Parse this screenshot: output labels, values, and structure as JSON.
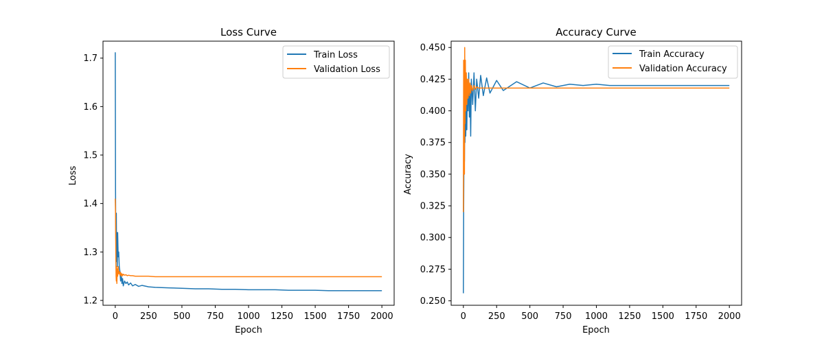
{
  "chart_data": [
    {
      "type": "line",
      "title": "Loss Curve",
      "xlabel": "Epoch",
      "ylabel": "Loss",
      "xlim": [
        -92,
        2092
      ],
      "ylim": [
        1.19,
        1.735
      ],
      "xticks": [
        0,
        250,
        500,
        750,
        1000,
        1250,
        1500,
        1750,
        2000
      ],
      "xtick_labels": [
        "0",
        "250",
        "500",
        "750",
        "1000",
        "1250",
        "1500",
        "1750",
        "2000"
      ],
      "yticks": [
        1.2,
        1.3,
        1.4,
        1.5,
        1.6,
        1.7
      ],
      "ytick_labels": [
        "1.2",
        "1.3",
        "1.4",
        "1.5",
        "1.6",
        "1.7"
      ],
      "grid": false,
      "legend": "top-right",
      "series": [
        {
          "name": "Train Loss",
          "color": "#1f77b4",
          "x": [
            0,
            2,
            4,
            6,
            8,
            10,
            12,
            15,
            18,
            22,
            26,
            30,
            35,
            40,
            45,
            50,
            55,
            60,
            70,
            80,
            90,
            100,
            115,
            130,
            150,
            175,
            200,
            250,
            300,
            400,
            500,
            600,
            700,
            800,
            900,
            1000,
            1100,
            1200,
            1300,
            1400,
            1500,
            1600,
            1700,
            1800,
            1900,
            2000
          ],
          "y": [
            1.712,
            1.43,
            1.33,
            1.3,
            1.38,
            1.28,
            1.34,
            1.27,
            1.34,
            1.29,
            1.3,
            1.27,
            1.26,
            1.24,
            1.255,
            1.235,
            1.245,
            1.23,
            1.24,
            1.235,
            1.238,
            1.232,
            1.236,
            1.23,
            1.233,
            1.229,
            1.231,
            1.228,
            1.227,
            1.226,
            1.225,
            1.224,
            1.224,
            1.223,
            1.223,
            1.222,
            1.222,
            1.222,
            1.221,
            1.221,
            1.221,
            1.22,
            1.22,
            1.22,
            1.22,
            1.22
          ]
        },
        {
          "name": "Validation Loss",
          "color": "#ff7f0e",
          "x": [
            0,
            2,
            4,
            6,
            8,
            10,
            12,
            15,
            18,
            22,
            26,
            30,
            35,
            40,
            45,
            50,
            55,
            60,
            70,
            80,
            90,
            100,
            115,
            130,
            150,
            175,
            200,
            250,
            300,
            400,
            500,
            600,
            700,
            800,
            900,
            1000,
            1100,
            1200,
            1300,
            1400,
            1500,
            1600,
            1700,
            1800,
            1900,
            2000
          ],
          "y": [
            1.41,
            1.38,
            1.3,
            1.25,
            1.24,
            1.27,
            1.235,
            1.265,
            1.25,
            1.27,
            1.255,
            1.26,
            1.252,
            1.258,
            1.25,
            1.255,
            1.251,
            1.254,
            1.252,
            1.253,
            1.251,
            1.252,
            1.251,
            1.251,
            1.25,
            1.25,
            1.25,
            1.25,
            1.249,
            1.249,
            1.249,
            1.249,
            1.249,
            1.249,
            1.249,
            1.249,
            1.249,
            1.249,
            1.249,
            1.249,
            1.249,
            1.249,
            1.249,
            1.249,
            1.249,
            1.249
          ]
        }
      ]
    },
    {
      "type": "line",
      "title": "Accuracy Curve",
      "xlabel": "Epoch",
      "ylabel": "Accuracy",
      "xlim": [
        -92,
        2092
      ],
      "ylim": [
        0.2465,
        0.455
      ],
      "xticks": [
        0,
        250,
        500,
        750,
        1000,
        1250,
        1500,
        1750,
        2000
      ],
      "xtick_labels": [
        "0",
        "250",
        "500",
        "750",
        "1000",
        "1250",
        "1500",
        "1750",
        "2000"
      ],
      "yticks": [
        0.25,
        0.275,
        0.3,
        0.325,
        0.35,
        0.375,
        0.4,
        0.425,
        0.45
      ],
      "ytick_labels": [
        "0.250",
        "0.275",
        "0.300",
        "0.325",
        "0.350",
        "0.375",
        "0.400",
        "0.425",
        "0.450"
      ],
      "grid": false,
      "legend": "top-right",
      "series": [
        {
          "name": "Train Accuracy",
          "color": "#1f77b4",
          "x": [
            0,
            2,
            4,
            6,
            8,
            10,
            12,
            15,
            18,
            22,
            26,
            30,
            35,
            40,
            45,
            50,
            55,
            60,
            70,
            80,
            90,
            100,
            115,
            130,
            150,
            175,
            200,
            250,
            300,
            400,
            500,
            600,
            700,
            800,
            900,
            1000,
            1100,
            1200,
            1300,
            1400,
            1500,
            1600,
            1700,
            1800,
            1900,
            2000
          ],
          "y": [
            0.256,
            0.32,
            0.355,
            0.37,
            0.36,
            0.39,
            0.375,
            0.4,
            0.38,
            0.41,
            0.385,
            0.42,
            0.4,
            0.43,
            0.395,
            0.415,
            0.38,
            0.425,
            0.405,
            0.43,
            0.4,
            0.425,
            0.41,
            0.428,
            0.412,
            0.426,
            0.414,
            0.424,
            0.416,
            0.423,
            0.418,
            0.422,
            0.419,
            0.421,
            0.42,
            0.421,
            0.42,
            0.42,
            0.42,
            0.42,
            0.42,
            0.42,
            0.42,
            0.42,
            0.42,
            0.42
          ]
        },
        {
          "name": "Validation Accuracy",
          "color": "#ff7f0e",
          "x": [
            0,
            2,
            4,
            6,
            8,
            10,
            12,
            15,
            18,
            22,
            26,
            30,
            35,
            40,
            45,
            50,
            55,
            60,
            70,
            80,
            90,
            100,
            115,
            130,
            150,
            175,
            200,
            250,
            300,
            400,
            500,
            600,
            700,
            800,
            900,
            1000,
            1100,
            1200,
            1300,
            1400,
            1500,
            1600,
            1700,
            1800,
            1900,
            2000
          ],
          "y": [
            0.32,
            0.44,
            0.36,
            0.43,
            0.35,
            0.45,
            0.39,
            0.44,
            0.4,
            0.43,
            0.405,
            0.425,
            0.41,
            0.425,
            0.412,
            0.422,
            0.414,
            0.42,
            0.416,
            0.42,
            0.417,
            0.419,
            0.418,
            0.418,
            0.418,
            0.418,
            0.418,
            0.418,
            0.418,
            0.418,
            0.418,
            0.418,
            0.418,
            0.418,
            0.418,
            0.418,
            0.418,
            0.418,
            0.418,
            0.418,
            0.418,
            0.418,
            0.418,
            0.418,
            0.418,
            0.418
          ]
        }
      ]
    }
  ]
}
